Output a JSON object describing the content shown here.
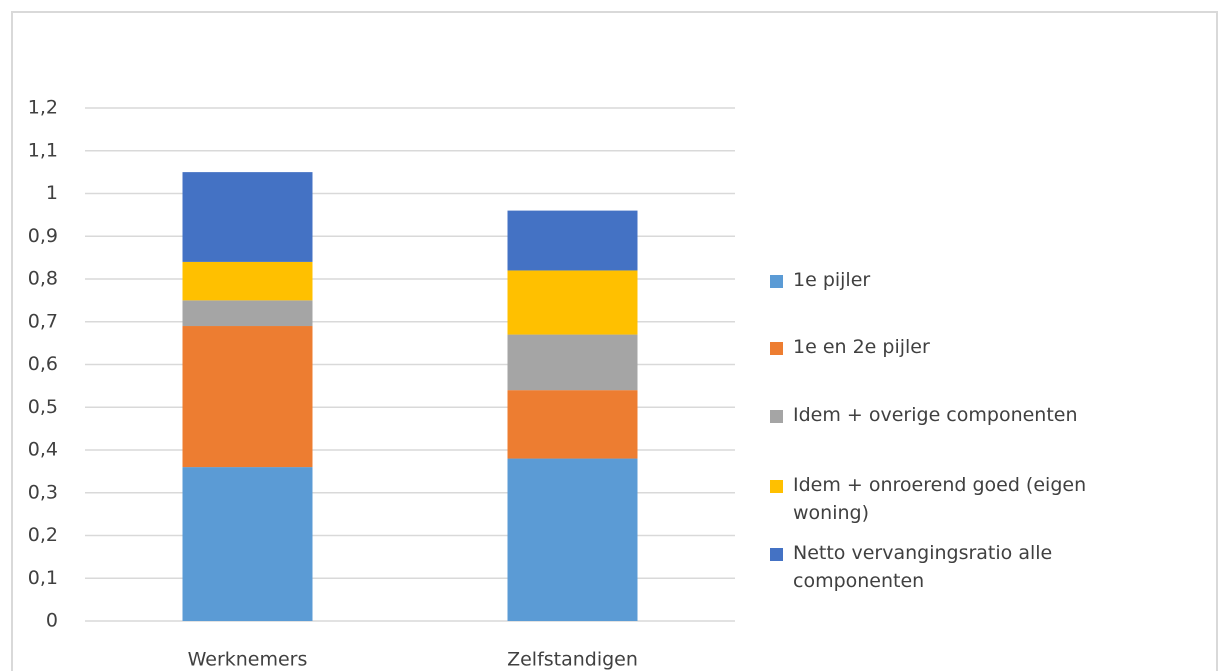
{
  "chart_data": {
    "type": "stacked_bar",
    "categories": [
      "Werknemers",
      "Zelfstandigen"
    ],
    "series": [
      {
        "name": "1e pijler",
        "color": "#5b9bd5",
        "values": [
          0.36,
          0.38
        ]
      },
      {
        "name": "1e en 2e pijler",
        "color": "#ed7d31",
        "values": [
          0.33,
          0.16
        ]
      },
      {
        "name": "Idem + overige componenten",
        "color": "#a5a5a5",
        "values": [
          0.06,
          0.13
        ]
      },
      {
        "name": "Idem + onroerend goed (eigen woning)",
        "color": "#ffc000",
        "values": [
          0.09,
          0.15
        ]
      },
      {
        "name": "Netto vervangingsratio alle componenten",
        "color": "#4472c4",
        "values": [
          0.21,
          0.14
        ]
      }
    ],
    "ylim": [
      0,
      1.2
    ],
    "yticks": [
      0,
      {
        "value": 0.1,
        "label": "0,1"
      },
      {
        "value": 0.2,
        "label": "0,2"
      },
      {
        "value": 0.3,
        "label": "0,3"
      },
      {
        "value": 0.4,
        "label": "0,4"
      },
      {
        "value": 0.5,
        "label": "0,5"
      },
      {
        "value": 0.6,
        "label": "0,6"
      },
      {
        "value": 0.7,
        "label": "0,7"
      },
      {
        "value": 0.8,
        "label": "0,8"
      },
      {
        "value": 0.9,
        "label": "0,9"
      },
      1,
      {
        "value": 1.1,
        "label": "1,1"
      },
      {
        "value": 1.2,
        "label": "1,2"
      }
    ],
    "grid": true,
    "legend": "right"
  }
}
